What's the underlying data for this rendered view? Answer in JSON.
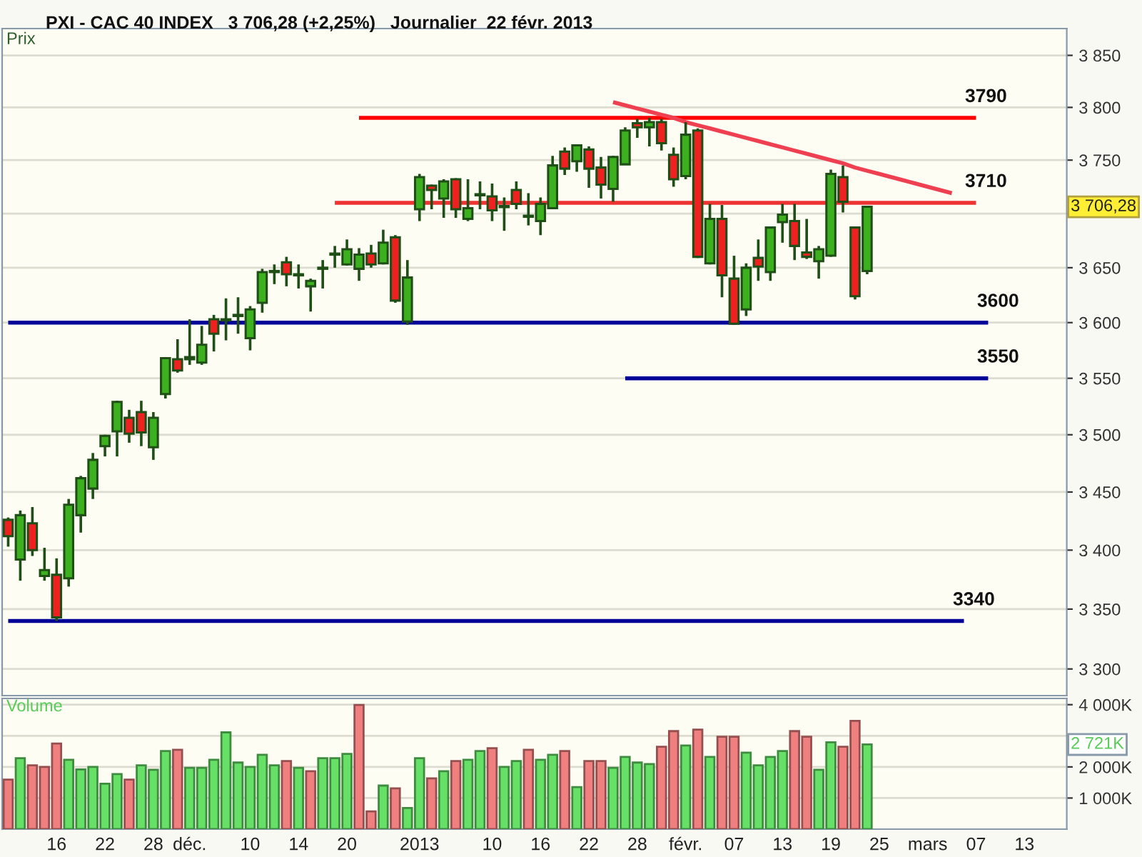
{
  "chart_data": [
    {
      "type": "candlestick",
      "title": "PXI - CAC 40 INDEX   3 706,28 (+2,25%)   Journalier  22 févr. 2013",
      "ylabel": "Prix",
      "categories": [
        null,
        null,
        null,
        null,
        null,
        null,
        null,
        null,
        null,
        null,
        null,
        null,
        null,
        null,
        null,
        null,
        null,
        null,
        null,
        null,
        null,
        null,
        null,
        null,
        null,
        null,
        null,
        null,
        null,
        null,
        null,
        null,
        null,
        null,
        null,
        null,
        null,
        null,
        null,
        null,
        null,
        null,
        null,
        null,
        null,
        null,
        null,
        null,
        null,
        null,
        null,
        null,
        null,
        null,
        null,
        null,
        null,
        null,
        null,
        null,
        null,
        null,
        null,
        null,
        null,
        null,
        null,
        null,
        null,
        null,
        null,
        null,
        null,
        null,
        null,
        null,
        null,
        null,
        null,
        null,
        null,
        null,
        null,
        null,
        null,
        null,
        null,
        null
      ],
      "ohlc": [
        [
          3426,
          3428,
          3403,
          3412
        ],
        [
          3392,
          3434,
          3374,
          3430
        ],
        [
          3423,
          3437,
          3395,
          3400
        ],
        [
          3378,
          3402,
          3374,
          3383
        ],
        [
          3379,
          3393,
          3340,
          3343
        ],
        [
          3376,
          3444,
          3369,
          3439
        ],
        [
          3430,
          3464,
          3415,
          3462
        ],
        [
          3453,
          3484,
          3444,
          3478
        ],
        [
          3490,
          3500,
          3481,
          3499
        ],
        [
          3503,
          3530,
          3481,
          3529
        ],
        [
          3515,
          3522,
          3493,
          3501
        ],
        [
          3520,
          3530,
          3490,
          3502
        ],
        [
          3489,
          3520,
          3478,
          3515
        ],
        [
          3536,
          3569,
          3532,
          3568
        ],
        [
          3567,
          3585,
          3555,
          3557
        ],
        [
          3567,
          3603,
          3562,
          3569
        ],
        [
          3564,
          3597,
          3562,
          3580
        ],
        [
          3603,
          3607,
          3574,
          3590
        ],
        [
          3602,
          3622,
          3584,
          3603
        ],
        [
          3606,
          3623,
          3590,
          3607
        ],
        [
          3586,
          3615,
          3575,
          3612
        ],
        [
          3618,
          3649,
          3609,
          3646
        ],
        [
          3646,
          3653,
          3635,
          3647
        ],
        [
          3655,
          3660,
          3633,
          3644
        ],
        [
          3643,
          3653,
          3631,
          3644
        ],
        [
          3633,
          3640,
          3610,
          3638
        ],
        [
          3649,
          3657,
          3631,
          3650
        ],
        [
          3662,
          3670,
          3650,
          3663
        ],
        [
          3653,
          3676,
          3652,
          3667
        ],
        [
          3649,
          3668,
          3638,
          3662
        ],
        [
          3663,
          3671,
          3650,
          3653
        ],
        [
          3654,
          3685,
          3653,
          3673
        ],
        [
          3678,
          3680,
          3618,
          3620
        ],
        [
          3601,
          3657,
          3598,
          3641
        ],
        [
          3704,
          3737,
          3693,
          3734
        ],
        [
          3726,
          3727,
          3704,
          3722
        ],
        [
          3714,
          3732,
          3696,
          3730
        ],
        [
          3732,
          3733,
          3696,
          3704
        ],
        [
          3695,
          3732,
          3693,
          3705
        ],
        [
          3717,
          3730,
          3704,
          3718
        ],
        [
          3716,
          3728,
          3693,
          3703
        ],
        [
          3707,
          3715,
          3684,
          3706
        ],
        [
          3722,
          3730,
          3704,
          3709
        ],
        [
          3697,
          3719,
          3689,
          3698
        ],
        [
          3693,
          3715,
          3680,
          3709
        ],
        [
          3705,
          3754,
          3705,
          3745
        ],
        [
          3758,
          3762,
          3736,
          3742
        ],
        [
          3749,
          3765,
          3739,
          3764
        ],
        [
          3760,
          3763,
          3724,
          3742
        ],
        [
          3743,
          3753,
          3714,
          3727
        ],
        [
          3723,
          3754,
          3711,
          3753
        ],
        [
          3746,
          3781,
          3746,
          3778
        ],
        [
          3785,
          3789,
          3771,
          3781
        ],
        [
          3781,
          3790,
          3763,
          3786
        ],
        [
          3786,
          3789,
          3759,
          3766
        ],
        [
          3755,
          3762,
          3725,
          3732
        ],
        [
          3735,
          3786,
          3732,
          3774
        ],
        [
          3778,
          3780,
          3659,
          3660
        ],
        [
          3654,
          3709,
          3653,
          3695
        ],
        [
          3695,
          3708,
          3623,
          3643
        ],
        [
          3640,
          3661,
          3598,
          3599
        ],
        [
          3612,
          3654,
          3606,
          3650
        ],
        [
          3659,
          3676,
          3638,
          3651
        ],
        [
          3646,
          3688,
          3638,
          3687
        ],
        [
          3692,
          3709,
          3673,
          3699
        ],
        [
          3693,
          3709,
          3657,
          3670
        ],
        [
          3664,
          3695,
          3658,
          3660
        ],
        [
          3656,
          3670,
          3640,
          3667
        ],
        [
          3661,
          3741,
          3660,
          3737
        ],
        [
          3734,
          3745,
          3701,
          3711
        ],
        [
          3687,
          3688,
          3621,
          3624
        ],
        [
          3647,
          3706.28,
          3644,
          3706.28
        ],
        null,
        null,
        null,
        null,
        null,
        null,
        null,
        null,
        null,
        null,
        null,
        null,
        null,
        null,
        null,
        null
      ],
      "colors": [
        "#ee2020",
        "#3cb01e",
        "#ee2020",
        "#3cb01e",
        "#ee2020",
        "#3cb01e",
        "#3cb01e",
        "#3cb01e",
        "#3cb01e",
        "#3cb01e",
        "#ee2020",
        "#ee2020",
        "#3cb01e",
        "#3cb01e",
        "#ee2020",
        "#3cb01e",
        "#3cb01e",
        "#ee2020",
        "#3cb01e",
        "#3cb01e",
        "#3cb01e",
        "#3cb01e",
        "#3cb01e",
        "#ee2020",
        "#3cb01e",
        "#3cb01e",
        "#3cb01e",
        "#3cb01e",
        "#3cb01e",
        "#3cb01e",
        "#ee2020",
        "#3cb01e",
        "#ee2020",
        "#3cb01e",
        "#3cb01e",
        "#ee2020",
        "#3cb01e",
        "#ee2020",
        "#3cb01e",
        "#3cb01e",
        "#ee2020",
        "#ee2020",
        "#ee2020",
        "#3cb01e",
        "#3cb01e",
        "#3cb01e",
        "#ee2020",
        "#3cb01e",
        "#ee2020",
        "#ee2020",
        "#3cb01e",
        "#3cb01e",
        "#ee2020",
        "#3cb01e",
        "#ee2020",
        "#ee2020",
        "#3cb01e",
        "#ee2020",
        "#3cb01e",
        "#ee2020",
        "#ee2020",
        "#3cb01e",
        "#ee2020",
        "#3cb01e",
        "#3cb01e",
        "#ee2020",
        "#ee2020",
        "#3cb01e",
        "#3cb01e",
        "#ee2020",
        "#ee2020",
        "#3cb01e",
        null,
        null,
        null,
        null,
        null,
        null,
        null,
        null,
        null,
        null,
        null,
        null,
        null,
        null,
        null,
        null
      ],
      "color": "#1f4f16",
      "log": true,
      "ylim": [
        3278,
        3876
      ],
      "yticks": [
        {
          "value": 3300,
          "label": "3 300"
        },
        {
          "value": 3350,
          "label": "3 350"
        },
        {
          "value": 3400,
          "label": "3 400"
        },
        {
          "value": 3450,
          "label": "3 450"
        },
        {
          "value": 3500,
          "label": "3 500"
        },
        {
          "value": 3550,
          "label": "3 550"
        },
        {
          "value": 3600,
          "label": "3 600"
        },
        {
          "value": 3650,
          "label": "3 650"
        },
        {
          "value": 3700,
          "label": null
        },
        {
          "value": 3750,
          "label": "3 750"
        },
        {
          "value": 3800,
          "label": "3 800"
        },
        {
          "value": 3850,
          "label": "3 850"
        }
      ],
      "grid": "y",
      "series": [
        {
          "type": "line",
          "name": "3790",
          "color": "#ff0000",
          "values": [
            null,
            null,
            null,
            null,
            null,
            null,
            null,
            null,
            null,
            null,
            null,
            null,
            null,
            null,
            null,
            null,
            null,
            null,
            null,
            null,
            null,
            null,
            null,
            null,
            null,
            null,
            null,
            null,
            null,
            3790,
            3790,
            3790,
            3790,
            3790,
            3790,
            3790,
            3790,
            3790,
            3790,
            3790,
            3790,
            3790,
            3790,
            3790,
            3790,
            3790,
            3790,
            3790,
            3790,
            3790,
            3790,
            3790,
            3790,
            3790,
            3790,
            3790,
            3790,
            3790,
            3790,
            3790,
            3790,
            3790,
            3790,
            3790,
            3790,
            3790,
            3790,
            3790,
            3790,
            3790,
            3790,
            3790,
            3790,
            3790,
            3790,
            3790,
            3790,
            3790,
            3790,
            3790,
            3790,
            null,
            null,
            null,
            null,
            null,
            null,
            null
          ]
        },
        {
          "type": "line",
          "name": "3710",
          "color": "#ee3333",
          "values": [
            null,
            null,
            null,
            null,
            null,
            null,
            null,
            null,
            null,
            null,
            null,
            null,
            null,
            null,
            null,
            null,
            null,
            null,
            null,
            null,
            null,
            null,
            null,
            null,
            null,
            null,
            null,
            3710,
            3710,
            3710,
            3710,
            3710,
            3710,
            3710,
            3710,
            3710,
            3710,
            3710,
            3710,
            3710,
            3710,
            3710,
            3710,
            3710,
            3710,
            3710,
            3710,
            3710,
            3710,
            3710,
            3710,
            3710,
            3710,
            3710,
            3710,
            3710,
            3710,
            3710,
            3710,
            3710,
            3710,
            3710,
            3710,
            3710,
            3710,
            3710,
            3710,
            3710,
            3710,
            3710,
            3710,
            3710,
            3710,
            3710,
            3710,
            3710,
            3710,
            3710,
            3710,
            3710,
            3710,
            null,
            null,
            null,
            null,
            null,
            null,
            null
          ]
        },
        {
          "type": "line",
          "color": "#ee4050",
          "values": [
            null,
            null,
            null,
            null,
            null,
            null,
            null,
            null,
            null,
            null,
            null,
            null,
            null,
            null,
            null,
            null,
            null,
            null,
            null,
            null,
            null,
            null,
            null,
            null,
            null,
            null,
            null,
            null,
            null,
            null,
            null,
            null,
            null,
            null,
            null,
            null,
            null,
            null,
            null,
            null,
            null,
            null,
            null,
            null,
            null,
            null,
            null,
            null,
            null,
            null,
            3805,
            3802,
            3799,
            3796,
            3793,
            3790,
            3786,
            3783,
            3780,
            3777,
            3774,
            3771,
            3768,
            3765,
            3762,
            3759,
            3756,
            3753,
            3750,
            3747,
            3743,
            3740,
            3737,
            3734,
            3731,
            3728,
            3725,
            3722,
            3719,
            null,
            null,
            null,
            null,
            null,
            null,
            null,
            null,
            null
          ]
        },
        {
          "type": "line",
          "name": "3600",
          "color": "#000099",
          "values": [
            3600,
            3600,
            3600,
            3600,
            3600,
            3600,
            3600,
            3600,
            3600,
            3600,
            3600,
            3600,
            3600,
            3600,
            3600,
            3600,
            3600,
            3600,
            3600,
            3600,
            3600,
            3600,
            3600,
            3600,
            3600,
            3600,
            3600,
            3600,
            3600,
            3600,
            3600,
            3600,
            3600,
            3600,
            3600,
            3600,
            3600,
            3600,
            3600,
            3600,
            3600,
            3600,
            3600,
            3600,
            3600,
            3600,
            3600,
            3600,
            3600,
            3600,
            3600,
            3600,
            3600,
            3600,
            3600,
            3600,
            3600,
            3600,
            3600,
            3600,
            3600,
            3600,
            3600,
            3600,
            3600,
            3600,
            3600,
            3600,
            3600,
            3600,
            3600,
            3600,
            3600,
            3600,
            3600,
            3600,
            3600,
            3600,
            3600,
            3600,
            3600,
            3600,
            null,
            null,
            null,
            null,
            null,
            null
          ]
        },
        {
          "type": "line",
          "name": "3550",
          "color": "#000099",
          "values": [
            null,
            null,
            null,
            null,
            null,
            null,
            null,
            null,
            null,
            null,
            null,
            null,
            null,
            null,
            null,
            null,
            null,
            null,
            null,
            null,
            null,
            null,
            null,
            null,
            null,
            null,
            null,
            null,
            null,
            null,
            null,
            null,
            null,
            null,
            null,
            null,
            null,
            null,
            null,
            null,
            null,
            null,
            null,
            null,
            null,
            null,
            null,
            null,
            null,
            null,
            null,
            3550,
            3550,
            3550,
            3550,
            3550,
            3550,
            3550,
            3550,
            3550,
            3550,
            3550,
            3550,
            3550,
            3550,
            3550,
            3550,
            3550,
            3550,
            3550,
            3550,
            3550,
            3550,
            3550,
            3550,
            3550,
            3550,
            3550,
            3550,
            3550,
            3550,
            3550,
            null,
            null,
            null,
            null,
            null,
            null
          ]
        },
        {
          "type": "line",
          "name": "3340",
          "color": "#000099",
          "values": [
            3340,
            3340,
            3340,
            3340,
            3340,
            3340,
            3340,
            3340,
            3340,
            3340,
            3340,
            3340,
            3340,
            3340,
            3340,
            3340,
            3340,
            3340,
            3340,
            3340,
            3340,
            3340,
            3340,
            3340,
            3340,
            3340,
            3340,
            3340,
            3340,
            3340,
            3340,
            3340,
            3340,
            3340,
            3340,
            3340,
            3340,
            3340,
            3340,
            3340,
            3340,
            3340,
            3340,
            3340,
            3340,
            3340,
            3340,
            3340,
            3340,
            3340,
            3340,
            3340,
            3340,
            3340,
            3340,
            3340,
            3340,
            3340,
            3340,
            3340,
            3340,
            3340,
            3340,
            3340,
            3340,
            3340,
            3340,
            3340,
            3340,
            3340,
            3340,
            3340,
            3340,
            3340,
            3340,
            3340,
            3340,
            3340,
            3340,
            3340,
            null,
            null,
            null,
            null,
            null,
            null,
            null,
            null
          ]
        }
      ],
      "annotations": [
        "3 706,28"
      ]
    },
    {
      "type": "bar",
      "ylabel": "Volume",
      "categories": [
        null,
        null,
        null,
        null,
        "16",
        null,
        null,
        null,
        "22",
        null,
        null,
        null,
        "28",
        null,
        null,
        "déc.",
        null,
        null,
        null,
        null,
        "10",
        null,
        null,
        null,
        "14",
        null,
        null,
        null,
        "20",
        null,
        null,
        null,
        null,
        null,
        "2013",
        null,
        null,
        null,
        null,
        null,
        "10",
        null,
        null,
        null,
        "16",
        null,
        null,
        null,
        "22",
        null,
        null,
        null,
        "28",
        null,
        null,
        null,
        "févr.",
        null,
        null,
        null,
        "07",
        null,
        null,
        null,
        "13",
        null,
        null,
        null,
        "19",
        null,
        null,
        null,
        "25",
        null,
        null,
        null,
        "mars",
        null,
        null,
        null,
        "07",
        null,
        null,
        null,
        "13",
        null,
        null,
        null
      ],
      "values": [
        1590,
        2280,
        2050,
        2000,
        2750,
        2230,
        1920,
        2000,
        1460,
        1770,
        1590,
        2050,
        1910,
        2510,
        2550,
        1970,
        1970,
        2230,
        3110,
        2140,
        2000,
        2390,
        2050,
        2190,
        1970,
        1860,
        2280,
        2280,
        2420,
        3990,
        570,
        1400,
        1310,
        680,
        2280,
        1630,
        1860,
        2190,
        2230,
        2510,
        2600,
        2000,
        2190,
        2550,
        2230,
        2390,
        2510,
        1350,
        2190,
        2190,
        1970,
        2320,
        2140,
        2090,
        2650,
        3150,
        2690,
        3200,
        2320,
        2970,
        2970,
        2460,
        2050,
        2320,
        2510,
        3150,
        2970,
        1910,
        2790,
        2650,
        3480,
        2721,
        null,
        null,
        null,
        null,
        null,
        null,
        null,
        null,
        null,
        null,
        null,
        null,
        null,
        null,
        null,
        null
      ],
      "colors": [
        "#f08080",
        "#66e066",
        "#f08080",
        "#f08080",
        "#f08080",
        "#66e066",
        "#66e066",
        "#66e066",
        "#66e066",
        "#66e066",
        "#f08080",
        "#66e066",
        "#66e066",
        "#66e066",
        "#f08080",
        "#66e066",
        "#66e066",
        "#66e066",
        "#66e066",
        "#66e066",
        "#66e066",
        "#66e066",
        "#66e066",
        "#f08080",
        "#66e066",
        "#f08080",
        "#66e066",
        "#66e066",
        "#66e066",
        "#f08080",
        "#f08080",
        "#66e066",
        "#f08080",
        "#66e066",
        "#66e066",
        "#f08080",
        "#66e066",
        "#f08080",
        "#66e066",
        "#66e066",
        "#f08080",
        "#66e066",
        "#66e066",
        "#f08080",
        "#66e066",
        "#66e066",
        "#f08080",
        "#66e066",
        "#f08080",
        "#f08080",
        "#66e066",
        "#66e066",
        "#66e066",
        "#66e066",
        "#f08080",
        "#f08080",
        "#66e066",
        "#f08080",
        "#66e066",
        "#f08080",
        "#f08080",
        "#66e066",
        "#66e066",
        "#66e066",
        "#66e066",
        "#f08080",
        "#f08080",
        "#66e066",
        "#66e066",
        "#f08080",
        "#f08080",
        "#66e066",
        null,
        null,
        null,
        null,
        null,
        null,
        null,
        null,
        null,
        null,
        null,
        null,
        null,
        null,
        null,
        null
      ],
      "ylim": [
        0,
        4200
      ],
      "yticks": [
        {
          "value": 1000,
          "label": "1 000K"
        },
        {
          "value": 2000,
          "label": "2 000K"
        },
        {
          "value": 3000,
          "label": null
        },
        {
          "value": 4000,
          "label": "4 000K"
        }
      ],
      "grid": "y",
      "annotations": [
        "2 721K"
      ]
    }
  ]
}
